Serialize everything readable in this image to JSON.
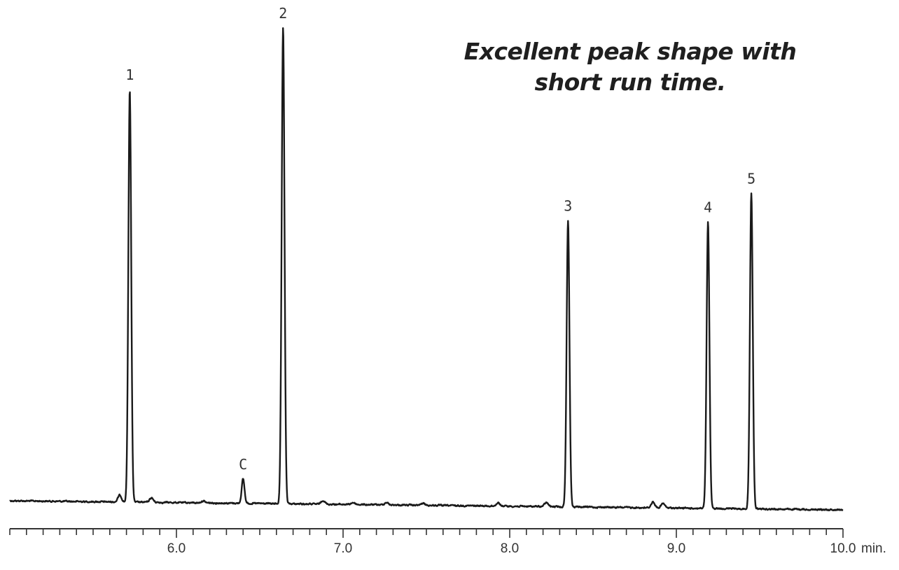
{
  "annotation": {
    "line1": "Excellent peak shape with",
    "line2": "short run time."
  },
  "colors": {
    "trace": "#1a1a1a",
    "axis": "#333333",
    "text": "#1f1f1f"
  },
  "chart_data": {
    "type": "line",
    "title": "",
    "xlabel": "min.",
    "ylabel": "",
    "grid": false,
    "xlim": [
      5.0,
      10.0
    ],
    "ylim": [
      0,
      1.0
    ],
    "x_major_ticks": [
      6.0,
      7.0,
      8.0,
      9.0,
      10.0
    ],
    "x_tick_labels": [
      "6.0",
      "7.0",
      "8.0",
      "9.0",
      "10.0"
    ],
    "x_minor_step": 0.1,
    "peaks": [
      {
        "label": "1",
        "x": 5.72,
        "height": 0.85
      },
      {
        "label": "C",
        "x": 6.4,
        "height": 0.05
      },
      {
        "label": "2",
        "x": 6.64,
        "height": 0.98
      },
      {
        "label": "3",
        "x": 8.35,
        "height": 0.59
      },
      {
        "label": "4",
        "x": 9.19,
        "height": 0.59
      },
      {
        "label": "5",
        "x": 9.45,
        "height": 0.65
      }
    ],
    "minor_peaks": [
      {
        "x": 5.66,
        "height": 0.014
      },
      {
        "x": 5.85,
        "height": 0.009
      },
      {
        "x": 6.16,
        "height": 0.004
      },
      {
        "x": 6.88,
        "height": 0.008
      },
      {
        "x": 7.06,
        "height": 0.004
      },
      {
        "x": 7.26,
        "height": 0.005
      },
      {
        "x": 7.48,
        "height": 0.004
      },
      {
        "x": 7.93,
        "height": 0.007
      },
      {
        "x": 8.22,
        "height": 0.008
      },
      {
        "x": 8.86,
        "height": 0.012
      },
      {
        "x": 8.92,
        "height": 0.009
      }
    ]
  }
}
